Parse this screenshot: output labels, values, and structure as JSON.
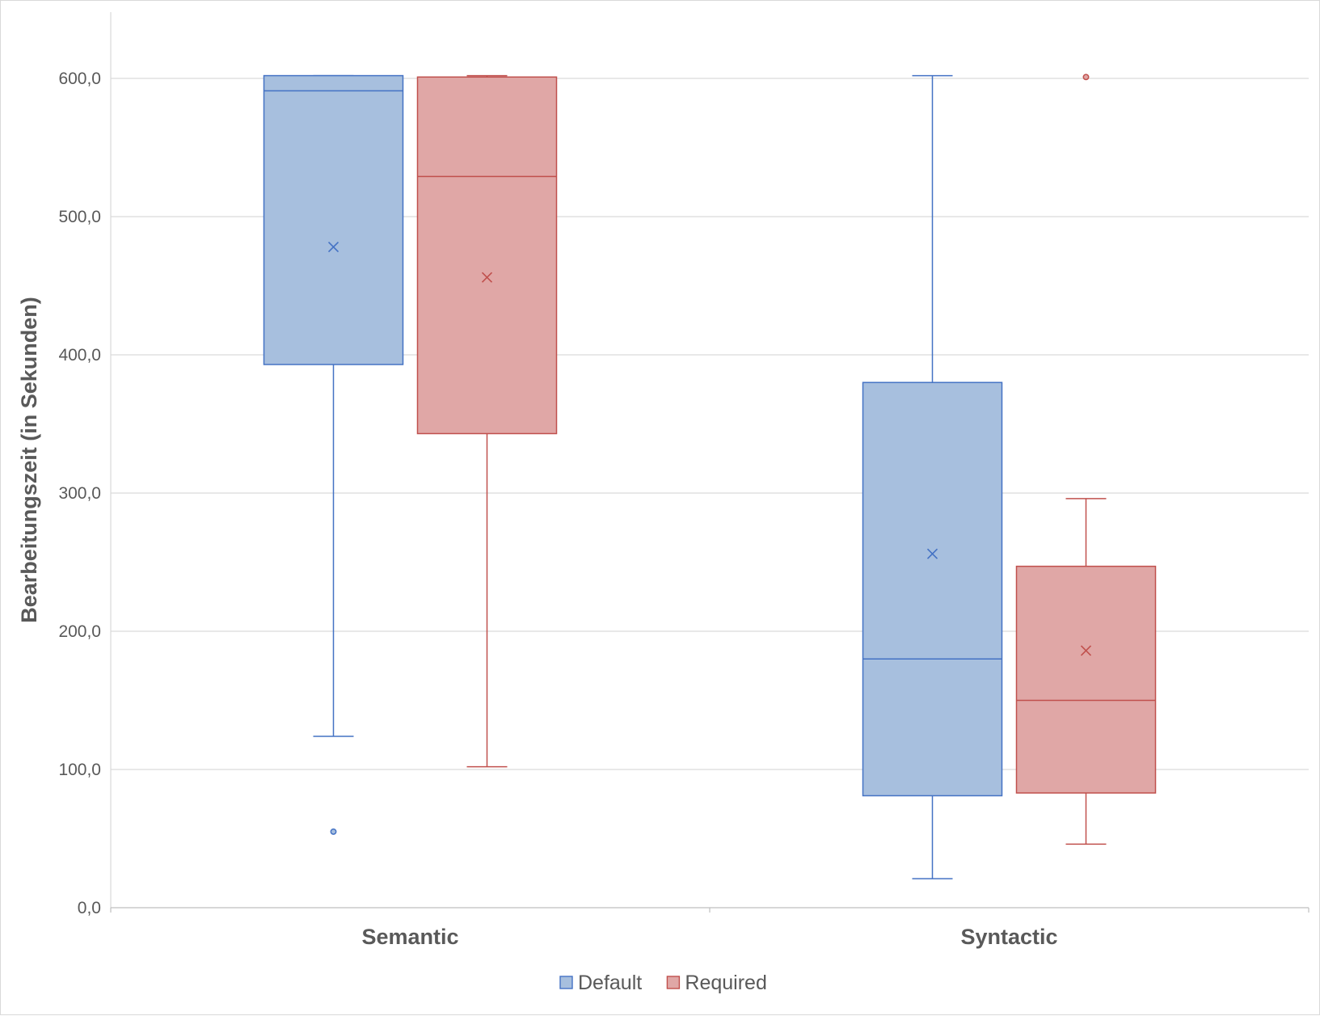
{
  "chart_data": {
    "type": "box",
    "title": "",
    "xlabel": "",
    "ylabel": "Bearbeitungszeit (in Sekunden)",
    "ylim": [
      0,
      650
    ],
    "yticks": [
      0,
      100,
      200,
      300,
      400,
      500,
      600
    ],
    "ytick_labels": [
      "0,0",
      "100,0",
      "200,0",
      "300,0",
      "400,0",
      "500,0",
      "600,0"
    ],
    "categories": [
      "Semantic",
      "Syntactic"
    ],
    "grid": true,
    "legend_position": "bottom",
    "series": [
      {
        "name": "Default",
        "color": "#4472c4",
        "fill": "#a7bfde",
        "boxes": [
          {
            "whisker_low": 124,
            "q1": 393,
            "median": 591,
            "q3": 602,
            "whisker_high": 602,
            "mean": 478,
            "outliers": [
              55
            ]
          },
          {
            "whisker_low": 21,
            "q1": 81,
            "median": 180,
            "q3": 380,
            "whisker_high": 602,
            "mean": 256,
            "outliers": []
          }
        ]
      },
      {
        "name": "Required",
        "color": "#c0504d",
        "fill": "#e0a7a6",
        "boxes": [
          {
            "whisker_low": 102,
            "q1": 343,
            "median": 529,
            "q3": 601,
            "whisker_high": 602,
            "mean": 456,
            "outliers": []
          },
          {
            "whisker_low": 46,
            "q1": 83,
            "median": 150,
            "q3": 247,
            "whisker_high": 296,
            "mean": 186,
            "outliers": [
              601
            ]
          }
        ]
      }
    ]
  }
}
